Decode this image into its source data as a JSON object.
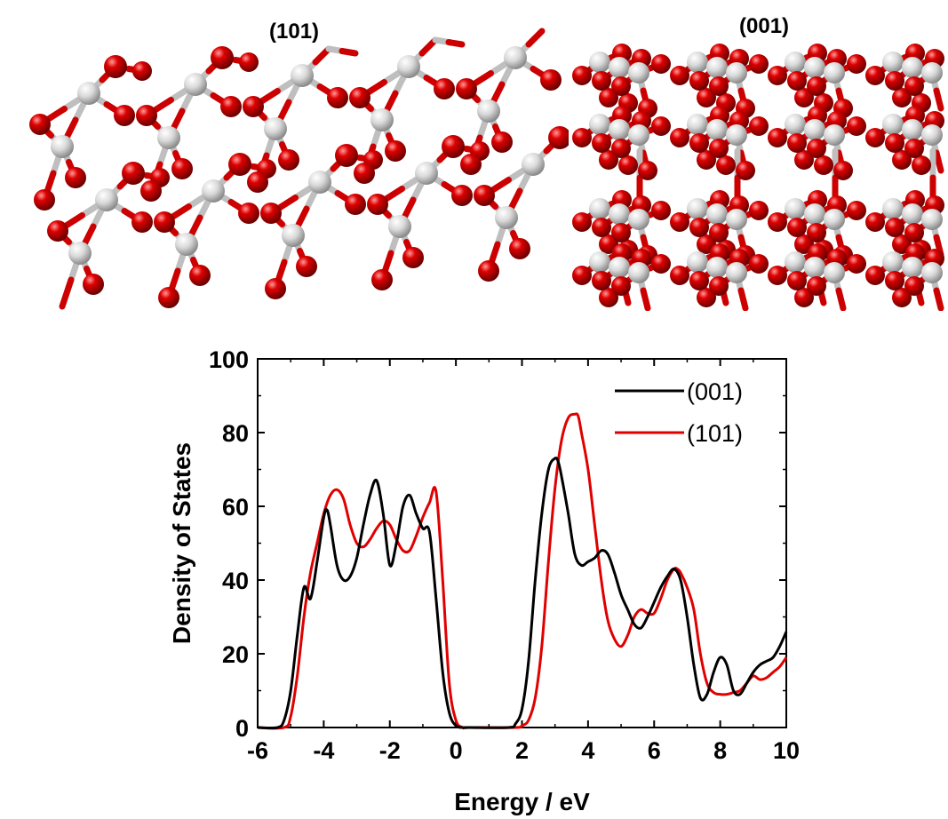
{
  "structures": [
    {
      "label": "(101)"
    },
    {
      "label": "(001)"
    }
  ],
  "colors": {
    "oxygen": "#dd0000",
    "titanium": "#d9d9d9",
    "series_001": "#000000",
    "series_101": "#e00000"
  },
  "chart_data": {
    "type": "line",
    "title": "",
    "xlabel": "Energy / eV",
    "ylabel": "Density of States",
    "xlim": [
      -6,
      10
    ],
    "ylim": [
      0,
      100
    ],
    "xticks": [
      -6,
      -4,
      -2,
      0,
      2,
      4,
      6,
      8,
      10
    ],
    "yticks": [
      0,
      20,
      40,
      60,
      80,
      100
    ],
    "grid": false,
    "legend": "top-right",
    "series": [
      {
        "name": "(001)",
        "color": "#000000",
        "x": [
          -6,
          -5.4,
          -5.2,
          -5.0,
          -4.8,
          -4.6,
          -4.4,
          -4.2,
          -4.0,
          -3.9,
          -3.8,
          -3.6,
          -3.4,
          -3.2,
          -3.0,
          -2.8,
          -2.6,
          -2.4,
          -2.2,
          -2.0,
          -1.8,
          -1.6,
          -1.4,
          -1.2,
          -1.0,
          -0.8,
          -0.6,
          -0.4,
          -0.2,
          0.0,
          0.2,
          0.4,
          1.6,
          1.8,
          2.0,
          2.2,
          2.4,
          2.6,
          2.8,
          3.0,
          3.1,
          3.2,
          3.4,
          3.6,
          3.8,
          4.0,
          4.2,
          4.4,
          4.6,
          4.8,
          5.0,
          5.2,
          5.4,
          5.6,
          5.8,
          6.0,
          6.2,
          6.4,
          6.6,
          6.8,
          7.0,
          7.2,
          7.4,
          7.6,
          7.8,
          8.0,
          8.2,
          8.4,
          8.6,
          8.8,
          9.0,
          9.2,
          9.4,
          9.6,
          9.8,
          10.0
        ],
        "y": [
          0,
          0,
          2,
          10,
          25,
          38,
          35,
          45,
          57,
          59,
          55,
          44,
          40,
          41,
          46,
          55,
          63,
          67,
          58,
          44,
          50,
          60,
          63,
          58,
          54,
          53,
          35,
          15,
          4,
          0.5,
          0,
          0,
          0,
          1,
          5,
          18,
          40,
          58,
          70,
          73,
          72,
          68,
          58,
          47,
          44,
          45,
          46,
          48,
          47,
          42,
          36,
          32,
          28,
          27,
          30,
          34,
          38,
          41,
          43,
          40,
          30,
          17,
          8,
          9,
          15,
          19,
          17,
          10,
          9,
          12,
          15,
          17,
          18,
          19,
          22,
          26
        ]
      },
      {
        "name": "(101)",
        "color": "#e00000",
        "x": [
          -6,
          -5.2,
          -5.0,
          -4.8,
          -4.6,
          -4.4,
          -4.2,
          -4.0,
          -3.8,
          -3.6,
          -3.4,
          -3.2,
          -3.0,
          -2.8,
          -2.6,
          -2.4,
          -2.2,
          -2.0,
          -1.8,
          -1.6,
          -1.4,
          -1.2,
          -1.0,
          -0.8,
          -0.6,
          -0.4,
          -0.2,
          0.0,
          0.2,
          0.4,
          1.8,
          2.0,
          2.2,
          2.4,
          2.6,
          2.8,
          3.0,
          3.2,
          3.4,
          3.6,
          3.7,
          3.8,
          4.0,
          4.2,
          4.4,
          4.6,
          4.8,
          5.0,
          5.2,
          5.4,
          5.6,
          5.8,
          6.0,
          6.2,
          6.4,
          6.6,
          6.7,
          6.8,
          7.0,
          7.2,
          7.4,
          7.6,
          7.8,
          8.0,
          8.2,
          8.4,
          8.6,
          8.8,
          9.0,
          9.2,
          9.4,
          9.6,
          9.8,
          10.0
        ],
        "y": [
          0,
          0,
          3,
          14,
          30,
          42,
          50,
          58,
          63,
          64.5,
          62,
          55,
          50,
          49,
          51,
          54,
          56,
          55,
          51,
          48,
          48,
          52,
          57,
          61,
          64,
          40,
          12,
          2,
          0,
          0,
          0,
          0.5,
          2,
          8,
          22,
          45,
          65,
          78,
          84,
          85,
          84.5,
          80,
          70,
          55,
          40,
          29,
          24,
          22,
          25,
          30,
          32,
          31,
          31,
          35,
          40,
          43,
          43,
          42,
          38,
          32,
          20,
          12,
          9.5,
          9,
          9,
          9.5,
          10,
          12,
          14,
          13,
          13.5,
          15,
          16.5,
          19
        ]
      }
    ]
  }
}
